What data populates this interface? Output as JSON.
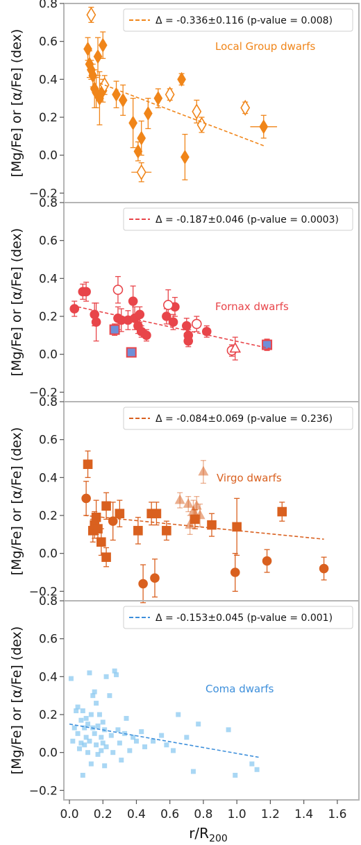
{
  "chart_data": [
    {
      "type": "scatter",
      "annotation": "Local Group dwarfs",
      "legend": "Δ = -0.336±0.116 (p-value = 0.008)",
      "legend_position": "top-right",
      "ylabel": "[Mg/Fe] or [α/Fe] (dex)",
      "xlim": [
        0,
        1.7
      ],
      "ylim": [
        -0.25,
        0.8
      ],
      "yticks": [
        "−0.2",
        "0.0",
        "0.2",
        "0.4",
        "0.6",
        "0.8"
      ],
      "color": "#f08519",
      "fit": {
        "x": [
          0.18,
          1.16
        ],
        "y": [
          0.38,
          0.05
        ]
      },
      "series": [
        {
          "marker": "diamond",
          "filled": true,
          "points": [
            {
              "x": 0.11,
              "y": 0.56,
              "ey": 0.06
            },
            {
              "x": 0.12,
              "y": 0.48,
              "ey": 0.07
            },
            {
              "x": 0.13,
              "y": 0.45,
              "ey": 0.05
            },
            {
              "x": 0.14,
              "y": 0.42,
              "ey": 0.06
            },
            {
              "x": 0.15,
              "y": 0.35,
              "ey": 0.1
            },
            {
              "x": 0.16,
              "y": 0.33,
              "ey": 0.08
            },
            {
              "x": 0.17,
              "y": 0.52,
              "ey": 0.1
            },
            {
              "x": 0.18,
              "y": 0.3,
              "ey": 0.14
            },
            {
              "x": 0.2,
              "y": 0.58,
              "ey": 0.07
            },
            {
              "x": 0.2,
              "y": 0.34,
              "ey": 0.06
            },
            {
              "x": 0.28,
              "y": 0.32,
              "ey": 0.07
            },
            {
              "x": 0.32,
              "y": 0.29,
              "ey": 0.08
            },
            {
              "x": 0.38,
              "y": 0.17,
              "ey": 0.13
            },
            {
              "x": 0.41,
              "y": 0.02,
              "ey": 0.05
            },
            {
              "x": 0.43,
              "y": 0.09,
              "ey": 0.09
            },
            {
              "x": 0.47,
              "y": 0.22,
              "ey": 0.08
            },
            {
              "x": 0.53,
              "y": 0.3,
              "ey": 0.05
            },
            {
              "x": 0.67,
              "y": 0.4,
              "ey": 0.03
            },
            {
              "x": 0.69,
              "y": -0.01,
              "ey": 0.12
            },
            {
              "x": 1.16,
              "y": 0.15,
              "ey": 0.06,
              "ex": 0.08
            }
          ]
        },
        {
          "marker": "diamond",
          "filled": false,
          "points": [
            {
              "x": 0.13,
              "y": 0.74,
              "ey": 0.04
            },
            {
              "x": 0.21,
              "y": 0.37,
              "ey": 0.05
            },
            {
              "x": 0.43,
              "y": -0.09,
              "ey": 0.05,
              "ex": 0.06
            },
            {
              "x": 0.6,
              "y": 0.32,
              "ey": 0.03
            },
            {
              "x": 0.76,
              "y": 0.23,
              "ey": 0.06
            },
            {
              "x": 0.79,
              "y": 0.16,
              "ey": 0.04
            },
            {
              "x": 1.05,
              "y": 0.25,
              "ey": 0.03
            }
          ]
        }
      ]
    },
    {
      "type": "scatter",
      "annotation": "Fornax dwarfs",
      "legend": "Δ = -0.187±0.046 (p-value = 0.0003)",
      "legend_position": "top-right",
      "ylabel": "[Mg/Fe] or [α/Fe] (dex)",
      "xlim": [
        0,
        1.7
      ],
      "ylim": [
        -0.25,
        0.8
      ],
      "yticks": [
        "−0.2",
        "0.0",
        "0.2",
        "0.4",
        "0.6",
        "0.8"
      ],
      "color": "#e8454a",
      "fit": {
        "x": [
          0.05,
          1.2
        ],
        "y": [
          0.25,
          0.03
        ]
      },
      "series": [
        {
          "marker": "circle",
          "filled": true,
          "points": [
            {
              "x": 0.03,
              "y": 0.24,
              "ey": 0.04
            },
            {
              "x": 0.08,
              "y": 0.33,
              "ey": 0.04
            },
            {
              "x": 0.1,
              "y": 0.33,
              "ey": 0.05
            },
            {
              "x": 0.15,
              "y": 0.21,
              "ey": 0.06
            },
            {
              "x": 0.16,
              "y": 0.17,
              "ey": 0.1
            },
            {
              "x": 0.29,
              "y": 0.19,
              "ey": 0.06
            },
            {
              "x": 0.31,
              "y": 0.18,
              "ey": 0.06
            },
            {
              "x": 0.35,
              "y": 0.18,
              "ey": 0.05
            },
            {
              "x": 0.38,
              "y": 0.28,
              "ey": 0.08
            },
            {
              "x": 0.39,
              "y": 0.19,
              "ey": 0.06
            },
            {
              "x": 0.41,
              "y": 0.15,
              "ey": 0.04
            },
            {
              "x": 0.42,
              "y": 0.21,
              "ey": 0.04
            },
            {
              "x": 0.43,
              "y": 0.12,
              "ey": 0.03
            },
            {
              "x": 0.46,
              "y": 0.1,
              "ey": 0.03
            },
            {
              "x": 0.58,
              "y": 0.2,
              "ey": 0.04
            },
            {
              "x": 0.62,
              "y": 0.17,
              "ey": 0.04
            },
            {
              "x": 0.63,
              "y": 0.25,
              "ey": 0.05
            },
            {
              "x": 0.7,
              "y": 0.15,
              "ey": 0.04
            },
            {
              "x": 0.71,
              "y": 0.1,
              "ey": 0.03
            },
            {
              "x": 0.71,
              "y": 0.07,
              "ey": 0.03
            },
            {
              "x": 0.82,
              "y": 0.12,
              "ey": 0.03
            }
          ]
        },
        {
          "marker": "circle",
          "filled": false,
          "points": [
            {
              "x": 0.29,
              "y": 0.34,
              "ey": 0.07
            },
            {
              "x": 0.59,
              "y": 0.26,
              "ey": 0.08
            },
            {
              "x": 0.76,
              "y": 0.16,
              "ey": 0.04
            },
            {
              "x": 0.97,
              "y": 0.02,
              "ey": 0.03
            }
          ]
        },
        {
          "marker": "triangle",
          "filled": false,
          "points": [
            {
              "x": 0.99,
              "y": 0.03,
              "ey": 0.06
            }
          ]
        },
        {
          "marker": "square",
          "filled": true,
          "fill": "#6f8fd8",
          "points": [
            {
              "x": 0.27,
              "y": 0.13,
              "ey": 0.03
            },
            {
              "x": 0.37,
              "y": 0.01,
              "ey": 0.02
            },
            {
              "x": 1.18,
              "y": 0.05,
              "ey": 0.03
            }
          ]
        }
      ]
    },
    {
      "type": "scatter",
      "annotation": "Virgo dwarfs",
      "legend": "Δ = -0.084±0.069 (p-value = 0.236)",
      "legend_position": "top-right",
      "ylabel": "[Mg/Fe] or [α/Fe] (dex)",
      "xlim": [
        0,
        1.7
      ],
      "ylim": [
        -0.25,
        0.8
      ],
      "yticks": [
        "−0.2",
        "0.0",
        "0.2",
        "0.4",
        "0.6",
        "0.8"
      ],
      "color": "#d9601f",
      "fit": {
        "x": [
          0.09,
          1.52
        ],
        "y": [
          0.2,
          0.075
        ]
      },
      "series": [
        {
          "marker": "square",
          "filled": true,
          "points": [
            {
              "x": 0.11,
              "y": 0.47,
              "ey": 0.07
            },
            {
              "x": 0.14,
              "y": 0.12,
              "ey": 0.06
            },
            {
              "x": 0.15,
              "y": 0.15,
              "ey": 0.07
            },
            {
              "x": 0.16,
              "y": 0.19,
              "ey": 0.09
            },
            {
              "x": 0.17,
              "y": 0.13,
              "ey": 0.05
            },
            {
              "x": 0.19,
              "y": 0.06,
              "ey": 0.07
            },
            {
              "x": 0.22,
              "y": 0.25,
              "ey": 0.07
            },
            {
              "x": 0.22,
              "y": -0.02,
              "ey": 0.05
            },
            {
              "x": 0.3,
              "y": 0.21,
              "ey": 0.07
            },
            {
              "x": 0.41,
              "y": 0.12,
              "ey": 0.07
            },
            {
              "x": 0.49,
              "y": 0.21,
              "ey": 0.06
            },
            {
              "x": 0.52,
              "y": 0.21,
              "ey": 0.06
            },
            {
              "x": 0.58,
              "y": 0.12,
              "ey": 0.05
            },
            {
              "x": 0.75,
              "y": 0.18,
              "ey": 0.05
            },
            {
              "x": 0.85,
              "y": 0.15,
              "ey": 0.06
            },
            {
              "x": 1.0,
              "y": 0.14,
              "ey": 0.15
            },
            {
              "x": 1.27,
              "y": 0.22,
              "ey": 0.05
            }
          ]
        },
        {
          "marker": "circle",
          "filled": true,
          "points": [
            {
              "x": 0.1,
              "y": 0.29,
              "ey": 0.09
            },
            {
              "x": 0.26,
              "y": 0.17,
              "ey": 0.1
            },
            {
              "x": 0.44,
              "y": -0.16,
              "ey": 0.1
            },
            {
              "x": 0.51,
              "y": -0.13,
              "ey": 0.1
            },
            {
              "x": 0.99,
              "y": -0.1,
              "ey": 0.1
            },
            {
              "x": 1.18,
              "y": -0.04,
              "ey": 0.06
            },
            {
              "x": 1.52,
              "y": -0.08,
              "ey": 0.06
            }
          ]
        },
        {
          "marker": "triangle",
          "filled": true,
          "alpha": 0.5,
          "points": [
            {
              "x": 0.66,
              "y": 0.28,
              "ey": 0.04
            },
            {
              "x": 0.71,
              "y": 0.26,
              "ey": 0.04
            },
            {
              "x": 0.72,
              "y": 0.15,
              "ey": 0.05
            },
            {
              "x": 0.74,
              "y": 0.22,
              "ey": 0.06
            },
            {
              "x": 0.76,
              "y": 0.25,
              "ey": 0.05
            },
            {
              "x": 0.78,
              "y": 0.2,
              "ey": 0.06
            },
            {
              "x": 0.8,
              "y": 0.43,
              "ey": 0.06
            }
          ]
        }
      ]
    },
    {
      "type": "scatter",
      "annotation": "Coma dwarfs",
      "legend": "Δ = -0.153±0.045 (p-value = 0.001)",
      "legend_position": "top-right",
      "ylabel": "[Mg/Fe] or [α/Fe] (dex)",
      "xlabel": "r/R",
      "xlabel_sub": "200",
      "xlim": [
        0,
        1.7
      ],
      "ylim": [
        -0.25,
        0.8
      ],
      "yticks": [
        "−0.2",
        "0.0",
        "0.2",
        "0.4",
        "0.6",
        "0.8"
      ],
      "xticks": [
        "0.0",
        "0.2",
        "0.4",
        "0.6",
        "0.8",
        "1.0",
        "1.2",
        "1.4",
        "1.6"
      ],
      "color": "#3d8fdb",
      "point_color": "#8ccaf0",
      "fit": {
        "x": [
          0.0,
          1.13
        ],
        "y": [
          0.15,
          -0.025
        ]
      },
      "series": [
        {
          "marker": "square",
          "filled": true,
          "alpha": 0.75,
          "points": [
            {
              "x": 0.01,
              "y": 0.39
            },
            {
              "x": 0.02,
              "y": 0.06
            },
            {
              "x": 0.03,
              "y": 0.13
            },
            {
              "x": 0.04,
              "y": 0.22
            },
            {
              "x": 0.05,
              "y": 0.24
            },
            {
              "x": 0.05,
              "y": 0.1
            },
            {
              "x": 0.06,
              "y": 0.02
            },
            {
              "x": 0.07,
              "y": 0.17
            },
            {
              "x": 0.07,
              "y": 0.05
            },
            {
              "x": 0.08,
              "y": -0.12
            },
            {
              "x": 0.08,
              "y": 0.22
            },
            {
              "x": 0.09,
              "y": 0.13
            },
            {
              "x": 0.09,
              "y": 0.04
            },
            {
              "x": 0.1,
              "y": 0.18
            },
            {
              "x": 0.1,
              "y": 0.08
            },
            {
              "x": 0.11,
              "y": 0.0
            },
            {
              "x": 0.11,
              "y": 0.15
            },
            {
              "x": 0.12,
              "y": 0.42
            },
            {
              "x": 0.12,
              "y": 0.06
            },
            {
              "x": 0.13,
              "y": 0.2
            },
            {
              "x": 0.13,
              "y": -0.06
            },
            {
              "x": 0.14,
              "y": 0.13
            },
            {
              "x": 0.14,
              "y": 0.3
            },
            {
              "x": 0.15,
              "y": 0.32
            },
            {
              "x": 0.15,
              "y": 0.1
            },
            {
              "x": 0.16,
              "y": 0.26
            },
            {
              "x": 0.16,
              "y": 0.04
            },
            {
              "x": 0.17,
              "y": 0.14
            },
            {
              "x": 0.17,
              "y": -0.01
            },
            {
              "x": 0.18,
              "y": 0.2
            },
            {
              "x": 0.19,
              "y": 0.08
            },
            {
              "x": 0.19,
              "y": 0.01
            },
            {
              "x": 0.2,
              "y": 0.16
            },
            {
              "x": 0.2,
              "y": 0.05
            },
            {
              "x": 0.21,
              "y": 0.12
            },
            {
              "x": 0.21,
              "y": -0.07
            },
            {
              "x": 0.22,
              "y": 0.4
            },
            {
              "x": 0.22,
              "y": 0.03
            },
            {
              "x": 0.24,
              "y": 0.3
            },
            {
              "x": 0.25,
              "y": 0.09
            },
            {
              "x": 0.26,
              "y": 0.0
            },
            {
              "x": 0.27,
              "y": 0.43
            },
            {
              "x": 0.28,
              "y": 0.41
            },
            {
              "x": 0.29,
              "y": 0.12
            },
            {
              "x": 0.3,
              "y": 0.05
            },
            {
              "x": 0.31,
              "y": -0.04
            },
            {
              "x": 0.33,
              "y": 0.1
            },
            {
              "x": 0.34,
              "y": 0.18
            },
            {
              "x": 0.36,
              "y": 0.01
            },
            {
              "x": 0.38,
              "y": 0.08
            },
            {
              "x": 0.4,
              "y": 0.06
            },
            {
              "x": 0.43,
              "y": 0.11
            },
            {
              "x": 0.45,
              "y": 0.03
            },
            {
              "x": 0.5,
              "y": 0.06
            },
            {
              "x": 0.55,
              "y": 0.09
            },
            {
              "x": 0.58,
              "y": 0.04
            },
            {
              "x": 0.62,
              "y": 0.01
            },
            {
              "x": 0.65,
              "y": 0.2
            },
            {
              "x": 0.7,
              "y": 0.08
            },
            {
              "x": 0.74,
              "y": -0.1
            },
            {
              "x": 0.77,
              "y": 0.15
            },
            {
              "x": 0.95,
              "y": 0.12
            },
            {
              "x": 0.99,
              "y": -0.12
            },
            {
              "x": 1.09,
              "y": -0.06
            },
            {
              "x": 1.12,
              "y": -0.09
            }
          ]
        }
      ]
    }
  ]
}
